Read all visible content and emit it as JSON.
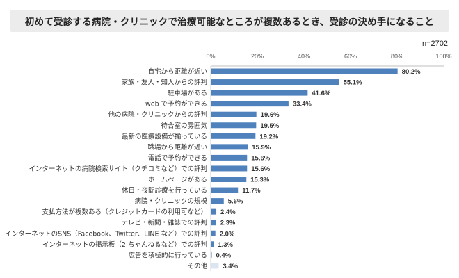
{
  "title": "初めて受診する病院・クリニックで治療可能なところが複数あるとき、受診の決め手になること",
  "note": "n=2702",
  "chart_data": {
    "type": "bar",
    "orientation": "horizontal",
    "title": "初めて受診する病院・クリニックで治療可能なところが複数あるとき、受診の決め手になること",
    "xlim": [
      0,
      100
    ],
    "xticks": [
      "0%",
      "20%",
      "40%",
      "60%",
      "80%",
      "100%"
    ],
    "xtick_values": [
      0,
      20,
      40,
      60,
      80,
      100
    ],
    "value_suffix": "%",
    "bar_color": "#4f81bd",
    "other_bar_color": "#dbe5f1",
    "categories": [
      "自宅から距離が近い",
      "家族・友人・知人からの評判",
      "駐車場がある",
      "web で予約ができる",
      "他の病院・クリニックからの評判",
      "待合室の雰囲気",
      "最新の医療設備が揃っている",
      "職場から距離が近い",
      "電話で予約ができる",
      "インターネットの病院検索サイト（クチコミなど）での評判",
      "ホームページがある",
      "休日・夜間診療を行っている",
      "病院・クリニックの規模",
      "支払方法が複数ある（クレジットカードの利用可など）",
      "テレビ・新聞・雑誌での評判",
      "インターネットのSNS（Facebook、Twitter、LINE など）での評判",
      "インターネットの掲示板（2 ちゃんねるなど）での評判",
      "広告を積極的に行っている",
      "その他"
    ],
    "values": [
      80.2,
      55.1,
      41.6,
      33.4,
      19.6,
      19.5,
      19.2,
      15.9,
      15.6,
      15.6,
      15.3,
      11.7,
      5.6,
      2.4,
      2.3,
      2.0,
      1.3,
      0.4,
      3.4
    ],
    "labels": [
      "80.2%",
      "55.1%",
      "41.6%",
      "33.4%",
      "19.6%",
      "19.5%",
      "19.2%",
      "15.9%",
      "15.6%",
      "15.6%",
      "15.3%",
      "11.7%",
      "5.6%",
      "2.4%",
      "2.3%",
      "2.0%",
      "1.3%",
      "0.4%",
      "3.4%"
    ]
  }
}
